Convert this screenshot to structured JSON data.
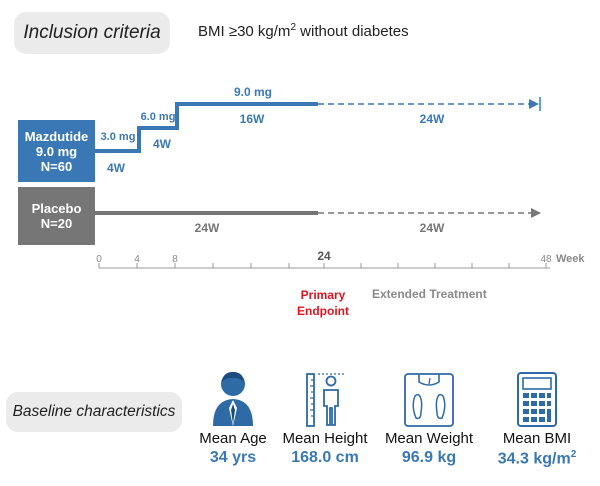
{
  "inclusion": {
    "label": "Inclusion criteria",
    "criteria_prefix": "BMI ≥30 kg/m",
    "criteria_sup": "2",
    "criteria_suffix": " without diabetes"
  },
  "arms": [
    {
      "name": "Mazdutide",
      "dose": "9.0 mg",
      "n": "N=60",
      "color": "#3a78b5"
    },
    {
      "name": "Placebo",
      "n": "N=20",
      "color": "#767676"
    }
  ],
  "titration": [
    {
      "dose": "3.0 mg",
      "duration": "4W"
    },
    {
      "dose": "6.0 mg",
      "duration": "4W"
    },
    {
      "dose": "9.0 mg",
      "duration": "16W"
    }
  ],
  "mazdutide_extension": "24W",
  "placebo_durations": [
    "24W",
    "24W"
  ],
  "timeline": {
    "ticks": [
      "0",
      "4",
      "8",
      "24",
      "48"
    ],
    "unit": "Week"
  },
  "primary_endpoint": [
    "Primary",
    "Endpoint"
  ],
  "extended_treatment": "Extended Treatment",
  "baseline": {
    "label": "Baseline characteristics",
    "stats": [
      {
        "label": "Mean Age",
        "value": "34 yrs",
        "icon": "person-icon"
      },
      {
        "label": "Mean Height",
        "value": "168.0 cm",
        "icon": "height-ruler-icon"
      },
      {
        "label": "Mean Weight",
        "value": "96.9 kg",
        "icon": "weight-scale-icon"
      },
      {
        "label": "Mean BMI",
        "value": "34.3 kg/m",
        "value_sup": "2",
        "icon": "calculator-icon"
      }
    ]
  },
  "colors": {
    "blue": "#3a78b5",
    "gray": "#767676",
    "red": "#e0141e"
  }
}
